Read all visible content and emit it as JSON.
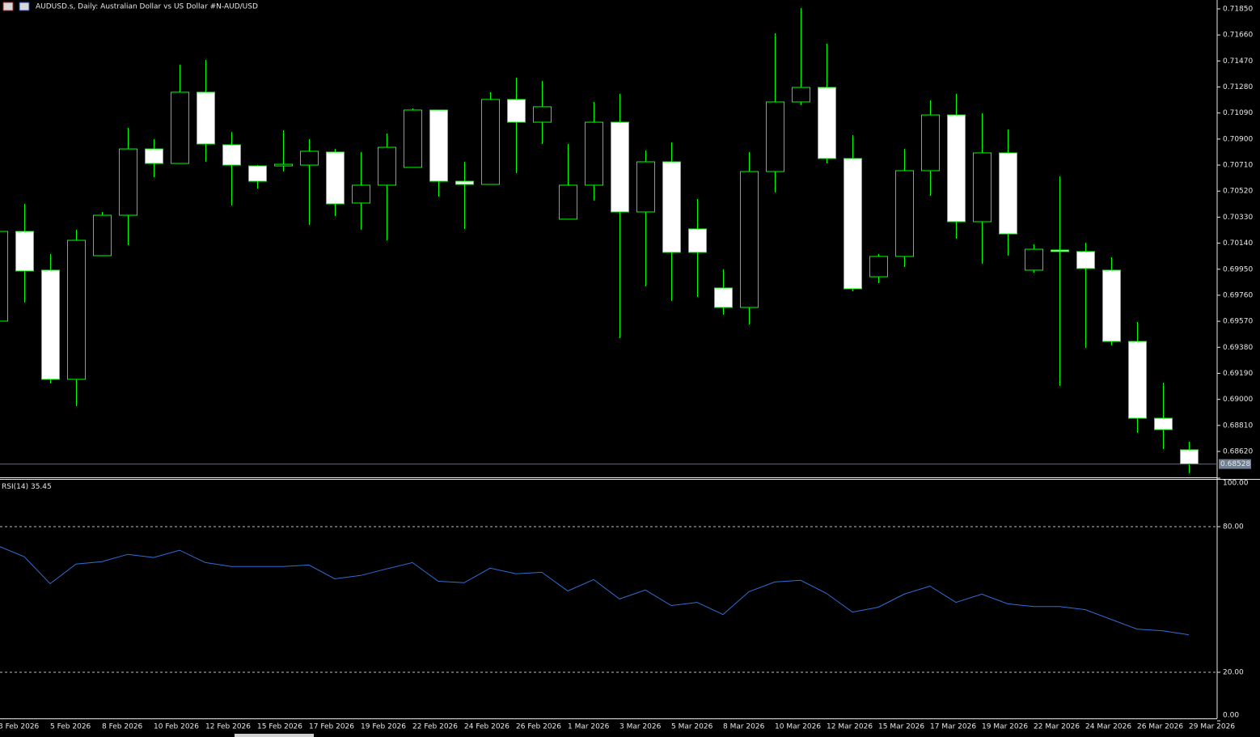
{
  "chart_data": [
    {
      "type": "candlestick",
      "title": "AUDUSD.s, Daily:  Australian Dollar vs US Dollar #N-AUD/USD",
      "categories": [
        "3 Feb 2026",
        null,
        "5 Feb 2026",
        null,
        "8 Feb 2026",
        null,
        "10 Feb 2026",
        null,
        "12 Feb 2026",
        null,
        "15 Feb 2026",
        null,
        "17 Feb 2026",
        null,
        "19 Feb 2026",
        null,
        "22 Feb 2026",
        null,
        "24 Feb 2026",
        null,
        "26 Feb 2026",
        null,
        "1 Mar 2026",
        null,
        "3 Mar 2026",
        null,
        "5 Mar 2026",
        null,
        "8 Mar 2026",
        null,
        "10 Mar 2026",
        null,
        "12 Mar 2026",
        null,
        "15 Mar 2026",
        null,
        "17 Mar 2026",
        null,
        "19 Mar 2026",
        null,
        "22 Mar 2026",
        null,
        "24 Mar 2026",
        null,
        "26 Mar 2026",
        null,
        "29 Mar 2026"
      ],
      "open": [
        0.69571,
        0.70226,
        0.69943,
        0.69146,
        0.70049,
        0.70344,
        0.70828,
        0.70722,
        0.71242,
        0.70858,
        0.70704,
        0.70704,
        0.7071,
        0.70805,
        0.70433,
        0.70563,
        0.70693,
        0.71112,
        0.70592,
        0.70569,
        0.71189,
        0.71023,
        0.70315,
        0.70563,
        0.71023,
        0.70368,
        0.70734,
        0.70244,
        0.69813,
        0.69671,
        0.70663,
        0.71171,
        0.71277,
        0.70758,
        0.69895,
        0.70043,
        0.70669,
        0.71076,
        0.70297,
        0.70799,
        0.69943,
        0.7009,
        0.70079,
        0.69943,
        0.69423,
        0.68862,
        0.68632
      ],
      "high": [
        0.70226,
        0.70427,
        0.70061,
        0.70238,
        0.70368,
        0.70982,
        0.70899,
        0.71443,
        0.71478,
        0.70952,
        0.7071,
        0.70964,
        0.70899,
        0.70828,
        0.70805,
        0.70941,
        0.71124,
        0.71112,
        0.70734,
        0.71242,
        0.71348,
        0.71324,
        0.70864,
        0.71171,
        0.7123,
        0.70817,
        0.70876,
        0.70462,
        0.69949,
        0.70805,
        0.71673,
        0.71856,
        0.71596,
        0.70929,
        0.70061,
        0.70828,
        0.71183,
        0.7123,
        0.71088,
        0.7097,
        0.70132,
        0.70628,
        0.70143,
        0.70037,
        0.69565,
        0.69122,
        0.68691
      ],
      "low": [
        0.69571,
        0.69707,
        0.69116,
        0.68951,
        0.70049,
        0.70126,
        0.70622,
        0.70722,
        0.70734,
        0.70415,
        0.70539,
        0.70663,
        0.70273,
        0.70338,
        0.70238,
        0.70161,
        0.70693,
        0.7048,
        0.70244,
        0.70569,
        0.70651,
        0.70864,
        0.70315,
        0.70451,
        0.69447,
        0.69825,
        0.69718,
        0.69748,
        0.69618,
        0.69547,
        0.7051,
        0.71147,
        0.70722,
        0.69789,
        0.69848,
        0.69966,
        0.70486,
        0.70173,
        0.6999,
        0.70049,
        0.69925,
        0.69098,
        0.69376,
        0.69394,
        0.68756,
        0.68638,
        0.68461
      ],
      "close": [
        0.70226,
        0.69937,
        0.69146,
        0.70161,
        0.70344,
        0.70828,
        0.70722,
        0.71242,
        0.70864,
        0.7071,
        0.70592,
        0.70716,
        0.70811,
        0.70427,
        0.70563,
        0.7084,
        0.71112,
        0.70592,
        0.70569,
        0.71189,
        0.71023,
        0.71136,
        0.70563,
        0.71023,
        0.70368,
        0.70734,
        0.70073,
        0.70073,
        0.69671,
        0.70663,
        0.71171,
        0.71277,
        0.70758,
        0.69807,
        0.70043,
        0.70669,
        0.71076,
        0.70297,
        0.70799,
        0.70208,
        0.70096,
        0.70079,
        0.69955,
        0.69423,
        0.68862,
        0.68779,
        0.68528
      ],
      "up_color": "#000000",
      "down_color": "#ffffff",
      "line_color": "#00ff00",
      "last_line_color": "#4d6f9a",
      "ylim": [
        0.68431,
        0.71915
      ],
      "yticks": [
        {
          "value": 0.7185,
          "label": "0.71850"
        },
        {
          "value": 0.7166,
          "label": "0.71660"
        },
        {
          "value": 0.7147,
          "label": "0.71470"
        },
        {
          "value": 0.7128,
          "label": "0.71280"
        },
        {
          "value": 0.7109,
          "label": "0.71090"
        },
        {
          "value": 0.709,
          "label": "0.70900"
        },
        {
          "value": 0.7071,
          "label": "0.70710"
        },
        {
          "value": 0.7052,
          "label": "0.70520"
        },
        {
          "value": 0.7033,
          "label": "0.70330"
        },
        {
          "value": 0.7014,
          "label": "0.70140"
        },
        {
          "value": 0.6995,
          "label": "0.69950"
        },
        {
          "value": 0.6976,
          "label": "0.69760"
        },
        {
          "value": 0.6957,
          "label": "0.69570"
        },
        {
          "value": 0.6938,
          "label": "0.69380"
        },
        {
          "value": 0.6919,
          "label": "0.69190"
        },
        {
          "value": 0.69,
          "label": "0.69000"
        },
        {
          "value": 0.6881,
          "label": "0.68810"
        },
        {
          "value": 0.6862,
          "label": "0.68620"
        }
      ]
    },
    {
      "type": "line",
      "series": [
        {
          "name": "RSI(14)",
          "color": "#2f6fd6",
          "values": [
            72.0,
            67.6,
            56.5,
            64.6,
            65.6,
            68.6,
            67.3,
            70.3,
            65.2,
            63.6,
            63.6,
            63.6,
            64.2,
            58.5,
            59.9,
            62.6,
            65.2,
            57.5,
            56.9,
            62.9,
            60.6,
            61.2,
            53.5,
            58.2,
            50.2,
            53.9,
            47.5,
            48.8,
            43.8,
            53.2,
            57.2,
            57.9,
            52.5,
            44.8,
            46.8,
            52.2,
            55.5,
            48.8,
            52.2,
            48.2,
            47.1,
            47.1,
            45.8,
            41.8,
            37.8,
            37.1,
            35.45
          ]
        }
      ],
      "ylim": [
        0,
        100
      ],
      "yticks": [
        {
          "value": 100,
          "label": "100.00"
        },
        {
          "value": 80,
          "label": "80.00"
        },
        {
          "value": 20,
          "label": "20.00"
        },
        {
          "value": 0,
          "label": "0.00"
        }
      ]
    }
  ]
}
